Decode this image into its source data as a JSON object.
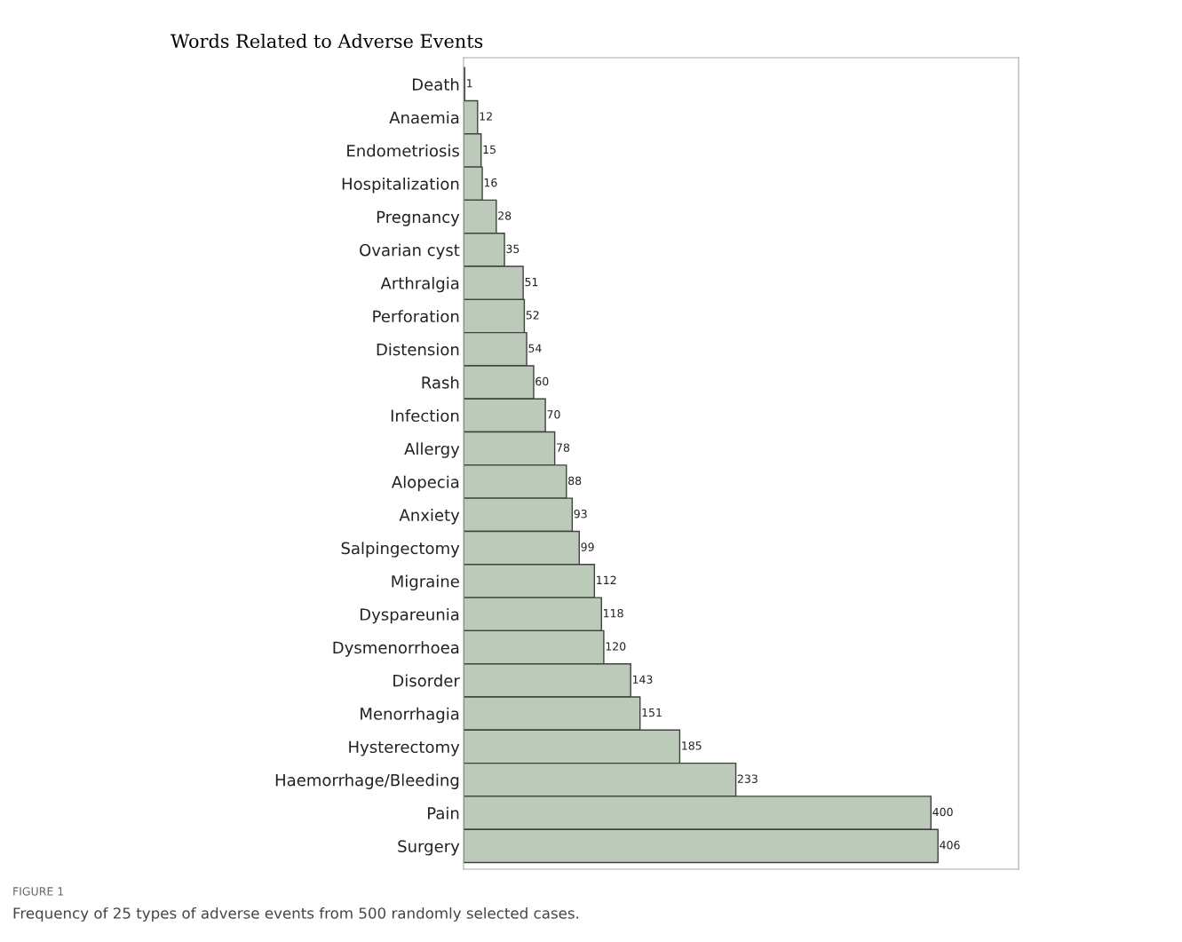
{
  "chart_data": {
    "type": "bar",
    "orientation": "horizontal",
    "title": "Words Related to Adverse Events",
    "categories": [
      "Death",
      "Anaemia",
      "Endometriosis",
      "Hospitalization",
      "Pregnancy",
      "Ovarian cyst",
      "Arthralgia",
      "Perforation",
      "Distension",
      "Rash",
      "Infection",
      "Allergy",
      "Alopecia",
      "Anxiety",
      "Salpingectomy",
      "Migraine",
      "Dyspareunia",
      "Dysmenorrhoea",
      "Disorder",
      "Menorrhagia",
      "Hysterectomy",
      "Haemorrhage/Bleeding",
      "Pain",
      "Surgery"
    ],
    "values": [
      1,
      12,
      15,
      16,
      28,
      35,
      51,
      52,
      54,
      60,
      70,
      78,
      88,
      93,
      99,
      112,
      118,
      120,
      143,
      151,
      185,
      233,
      400,
      406
    ],
    "color": "#bccbb9",
    "data_labels": true,
    "xlim": [
      0,
      475
    ],
    "tick_labels": "y",
    "grid": false,
    "annotations": [
      "FIGURE 1",
      "Frequency of 25 types of adverse events from 500 randomly selected cases."
    ]
  }
}
